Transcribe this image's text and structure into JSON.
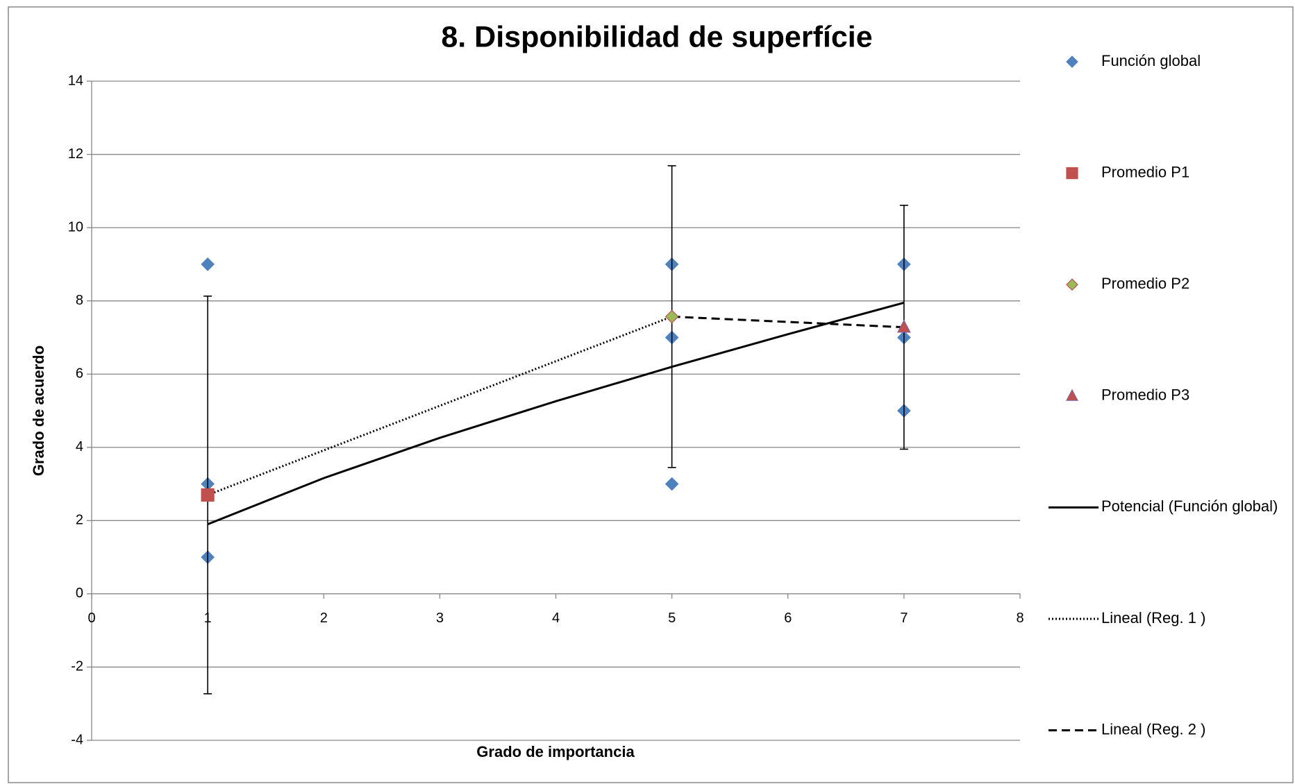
{
  "chart_data": {
    "type": "scatter",
    "title": "8. Disponibilidad de superfície",
    "x_label": "Grado de importancia",
    "y_label": "Grado de acuerdo",
    "xlim": [
      0,
      8
    ],
    "xticks": [
      0,
      1,
      2,
      3,
      4,
      5,
      6,
      7,
      8
    ],
    "ylim": [
      -4,
      14
    ],
    "yticks": [
      -4,
      -2,
      0,
      2,
      4,
      6,
      8,
      10,
      12,
      14
    ],
    "grid": true,
    "legend": "right",
    "series": [
      {
        "name": "Función global",
        "kind": "markers",
        "marker": "diamond",
        "color": "#4f81bd",
        "x": [
          1,
          1,
          1,
          5,
          5,
          5,
          7,
          7,
          7
        ],
        "values": [
          9,
          3,
          1,
          9,
          7,
          3,
          9,
          7,
          5
        ]
      },
      {
        "name": "Promedio P1",
        "kind": "markers",
        "marker": "square",
        "color": "#c0504d",
        "x": [
          1
        ],
        "values": [
          2.7
        ],
        "errors": [
          5.43
        ]
      },
      {
        "name": "Promedio P2",
        "kind": "markers",
        "marker": "diamond",
        "color": "#9bbb59",
        "edge": "#c0504d",
        "x": [
          5
        ],
        "values": [
          7.57
        ],
        "errors": [
          4.12
        ]
      },
      {
        "name": "Promedio P3",
        "kind": "markers",
        "marker": "triangle",
        "color": "#c0504d",
        "edge": "#8064a2",
        "x": [
          7
        ],
        "values": [
          7.28
        ],
        "errors": [
          3.33
        ]
      },
      {
        "name": "Potencial (Función global)",
        "kind": "line",
        "dash": "solid",
        "color": "#000000",
        "x": [
          1,
          2,
          3,
          4,
          5,
          6,
          7
        ],
        "values": [
          1.9,
          3.16,
          4.26,
          5.26,
          6.2,
          7.09,
          7.95
        ]
      },
      {
        "name": "Lineal (Reg. 1 )",
        "kind": "line",
        "dash": "dotted",
        "color": "#000000",
        "x": [
          1,
          5
        ],
        "values": [
          2.7,
          7.57
        ]
      },
      {
        "name": "Lineal (Reg. 2 )",
        "kind": "line",
        "dash": "dashed",
        "color": "#000000",
        "x": [
          5,
          7
        ],
        "values": [
          7.57,
          7.28
        ]
      }
    ]
  }
}
